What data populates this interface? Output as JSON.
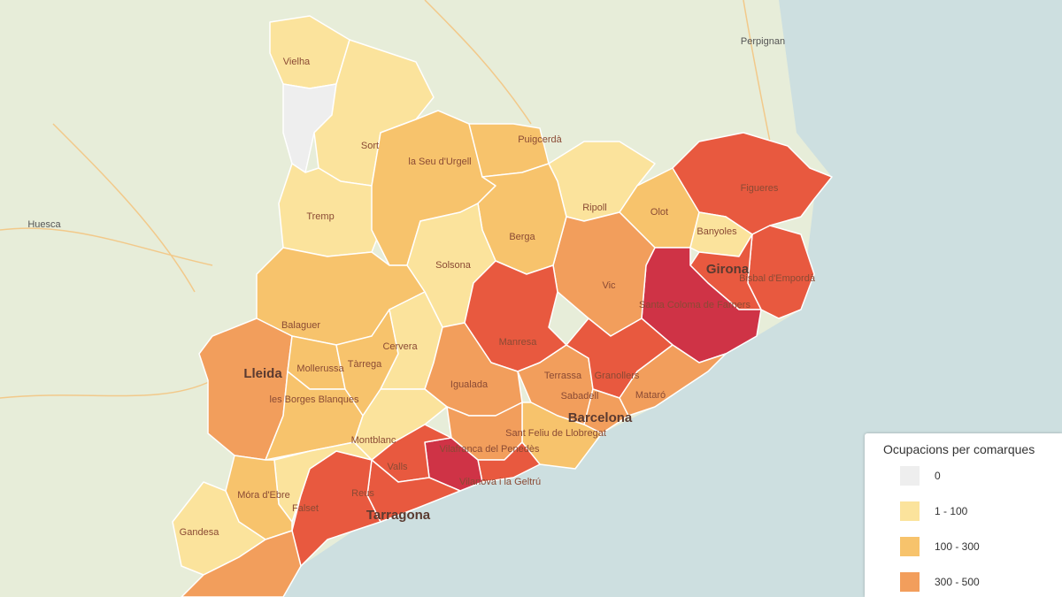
{
  "map": {
    "legend": {
      "title": "Ocupacions per comarques",
      "items": [
        {
          "label": "0",
          "color": "#eeeeee"
        },
        {
          "label": "1 - 100",
          "color": "#fbe39c"
        },
        {
          "label": "100 - 300",
          "color": "#f7c36c"
        },
        {
          "label": "300 - 500",
          "color": "#f29e5c"
        }
      ]
    },
    "regions": [
      {
        "color": "#fbe39c"
      },
      {
        "color": "#eeeeee"
      },
      {
        "color": "#fbe39c"
      },
      {
        "color": "#fbe39c"
      },
      {
        "color": "#f7c36c"
      },
      {
        "color": "#f7c36c"
      },
      {
        "color": "#fbe39c"
      },
      {
        "color": "#f7c36c"
      },
      {
        "color": "#e8593f"
      },
      {
        "color": "#fbe39c"
      },
      {
        "color": "#e8593f"
      },
      {
        "color": "#e8593f"
      },
      {
        "color": "#cf3346"
      },
      {
        "color": "#f29e5c"
      },
      {
        "color": "#f7c36c"
      },
      {
        "color": "#fbe39c"
      },
      {
        "color": "#e8593f"
      },
      {
        "color": "#f7c36c"
      },
      {
        "color": "#f29e5c"
      },
      {
        "color": "#f7c36c"
      },
      {
        "color": "#f7c36c"
      },
      {
        "color": "#f7c36c"
      },
      {
        "color": "#fbe39c"
      },
      {
        "color": "#f29e5c"
      },
      {
        "color": "#f29e5c"
      },
      {
        "color": "#e8593f"
      },
      {
        "color": "#f29e5c"
      },
      {
        "color": "#f29e5c"
      },
      {
        "color": "#f7c36c"
      },
      {
        "color": "#fbe39c"
      },
      {
        "color": "#f29e5c"
      },
      {
        "color": "#e8593f"
      },
      {
        "color": "#cf3346"
      },
      {
        "color": "#e8593f"
      },
      {
        "color": "#e8593f"
      },
      {
        "color": "#e8593f"
      },
      {
        "color": "#fbe39c"
      },
      {
        "color": "#f7c36c"
      },
      {
        "color": "#fbe39c"
      },
      {
        "color": "#f29e5c"
      }
    ],
    "labels": [
      "Vielha",
      "Sort",
      "la Seu d'Urgell",
      "Puigcerdà",
      "Ripoll",
      "Olot",
      "Figueres",
      "Banyoles",
      "Girona",
      "Bisbal d'Empordà",
      "Santa Coloma de Farners",
      "Vic",
      "Berga",
      "Solsona",
      "Tremp",
      "Manresa",
      "Balaguer",
      "Lleida",
      "Mollerussa",
      "Tàrrega",
      "les Borges Blanques",
      "Cervera",
      "Igualada",
      "Terrassa",
      "Sabadell",
      "Granollers",
      "Mataró",
      "Barcelona",
      "Sant Feliu de Llobregat",
      "Montblanc",
      "Valls",
      "Vilafranca del Penedès",
      "Vilanova i la Geltrú",
      "Reus",
      "Tarragona",
      "Falset",
      "Móra d'Ebre",
      "Gandesa",
      "Perpignan",
      "Huesca"
    ]
  }
}
